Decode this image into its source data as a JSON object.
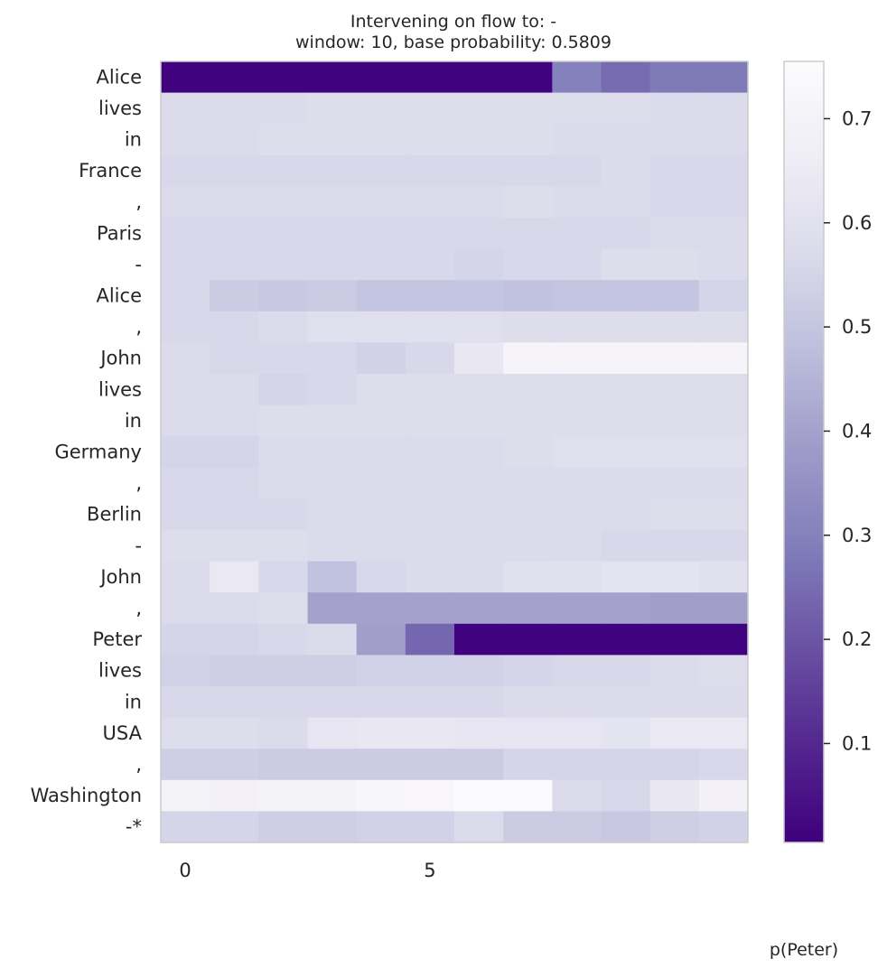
{
  "chart_data": {
    "type": "heatmap",
    "title_line1": "Intervening on flow to:  -",
    "title_line2": "window: 10, base probability: 0.5809",
    "colorbar_label": "p(Peter)",
    "y_labels": [
      "Alice",
      "lives",
      "in",
      "France",
      ",",
      "Paris",
      "-",
      "Alice",
      ",",
      "John",
      "lives",
      "in",
      "Germany",
      ",",
      "Berlin",
      "-",
      "John",
      ",",
      "Peter",
      "lives",
      "in",
      "USA",
      ",",
      "Washington",
      "-*"
    ],
    "x_ticks": [
      {
        "value": 0,
        "label": "0"
      },
      {
        "value": 5,
        "label": "5"
      }
    ],
    "n_columns": 12,
    "value_range": [
      0.005,
      0.755
    ],
    "colorbar_ticks": [
      {
        "value": 0.1,
        "label": "0.1"
      },
      {
        "value": 0.2,
        "label": "0.2"
      },
      {
        "value": 0.3,
        "label": "0.3"
      },
      {
        "value": 0.4,
        "label": "0.4"
      },
      {
        "value": 0.5,
        "label": "0.5"
      },
      {
        "value": 0.6,
        "label": "0.6"
      },
      {
        "value": 0.7,
        "label": "0.7"
      }
    ],
    "colormap": [
      "#3f007d",
      "#54278f",
      "#6a51a3",
      "#807dba",
      "#9e9ac8",
      "#bcbddc",
      "#dadaeb",
      "#efedf5",
      "#fcfbfd"
    ],
    "values": [
      [
        0.01,
        0.01,
        0.01,
        0.01,
        0.01,
        0.01,
        0.01,
        0.01,
        0.3,
        0.25,
        0.28,
        0.28
      ],
      [
        0.57,
        0.57,
        0.57,
        0.58,
        0.58,
        0.58,
        0.58,
        0.58,
        0.58,
        0.58,
        0.57,
        0.57
      ],
      [
        0.57,
        0.57,
        0.58,
        0.58,
        0.58,
        0.58,
        0.58,
        0.58,
        0.57,
        0.57,
        0.57,
        0.57
      ],
      [
        0.56,
        0.56,
        0.56,
        0.56,
        0.56,
        0.56,
        0.56,
        0.56,
        0.56,
        0.57,
        0.56,
        0.56
      ],
      [
        0.57,
        0.57,
        0.57,
        0.57,
        0.57,
        0.57,
        0.57,
        0.58,
        0.57,
        0.57,
        0.56,
        0.56
      ],
      [
        0.56,
        0.56,
        0.56,
        0.56,
        0.56,
        0.56,
        0.56,
        0.56,
        0.56,
        0.56,
        0.57,
        0.57
      ],
      [
        0.56,
        0.56,
        0.56,
        0.56,
        0.56,
        0.56,
        0.55,
        0.56,
        0.56,
        0.58,
        0.58,
        0.57
      ],
      [
        0.56,
        0.52,
        0.51,
        0.52,
        0.5,
        0.5,
        0.5,
        0.49,
        0.5,
        0.5,
        0.5,
        0.55
      ],
      [
        0.56,
        0.56,
        0.57,
        0.59,
        0.59,
        0.59,
        0.59,
        0.58,
        0.58,
        0.58,
        0.58,
        0.58
      ],
      [
        0.57,
        0.56,
        0.56,
        0.56,
        0.54,
        0.56,
        0.63,
        0.71,
        0.71,
        0.71,
        0.71,
        0.71
      ],
      [
        0.57,
        0.57,
        0.55,
        0.56,
        0.58,
        0.58,
        0.58,
        0.58,
        0.58,
        0.58,
        0.58,
        0.58
      ],
      [
        0.57,
        0.57,
        0.58,
        0.58,
        0.58,
        0.58,
        0.58,
        0.58,
        0.58,
        0.58,
        0.58,
        0.58
      ],
      [
        0.55,
        0.55,
        0.57,
        0.57,
        0.57,
        0.57,
        0.57,
        0.58,
        0.59,
        0.59,
        0.59,
        0.59
      ],
      [
        0.56,
        0.56,
        0.57,
        0.57,
        0.57,
        0.57,
        0.57,
        0.57,
        0.57,
        0.57,
        0.57,
        0.57
      ],
      [
        0.56,
        0.56,
        0.56,
        0.57,
        0.57,
        0.57,
        0.57,
        0.57,
        0.57,
        0.57,
        0.58,
        0.58
      ],
      [
        0.58,
        0.58,
        0.58,
        0.57,
        0.57,
        0.57,
        0.57,
        0.57,
        0.57,
        0.56,
        0.56,
        0.56
      ],
      [
        0.57,
        0.64,
        0.56,
        0.49,
        0.56,
        0.57,
        0.57,
        0.59,
        0.6,
        0.61,
        0.61,
        0.6
      ],
      [
        0.57,
        0.57,
        0.58,
        0.4,
        0.4,
        0.4,
        0.4,
        0.4,
        0.4,
        0.4,
        0.39,
        0.39
      ],
      [
        0.55,
        0.55,
        0.56,
        0.57,
        0.39,
        0.24,
        0.01,
        0.01,
        0.01,
        0.01,
        0.01,
        0.01
      ],
      [
        0.54,
        0.53,
        0.53,
        0.53,
        0.54,
        0.54,
        0.54,
        0.55,
        0.56,
        0.56,
        0.57,
        0.58
      ],
      [
        0.56,
        0.56,
        0.56,
        0.56,
        0.56,
        0.56,
        0.56,
        0.57,
        0.57,
        0.57,
        0.57,
        0.57
      ],
      [
        0.58,
        0.58,
        0.57,
        0.62,
        0.63,
        0.63,
        0.62,
        0.62,
        0.62,
        0.61,
        0.64,
        0.64
      ],
      [
        0.53,
        0.53,
        0.52,
        0.52,
        0.52,
        0.52,
        0.52,
        0.55,
        0.55,
        0.55,
        0.55,
        0.56
      ],
      [
        0.7,
        0.69,
        0.7,
        0.7,
        0.72,
        0.73,
        0.75,
        0.75,
        0.57,
        0.56,
        0.63,
        0.69
      ],
      [
        0.55,
        0.55,
        0.53,
        0.53,
        0.54,
        0.54,
        0.57,
        0.52,
        0.52,
        0.51,
        0.53,
        0.54
      ]
    ]
  }
}
